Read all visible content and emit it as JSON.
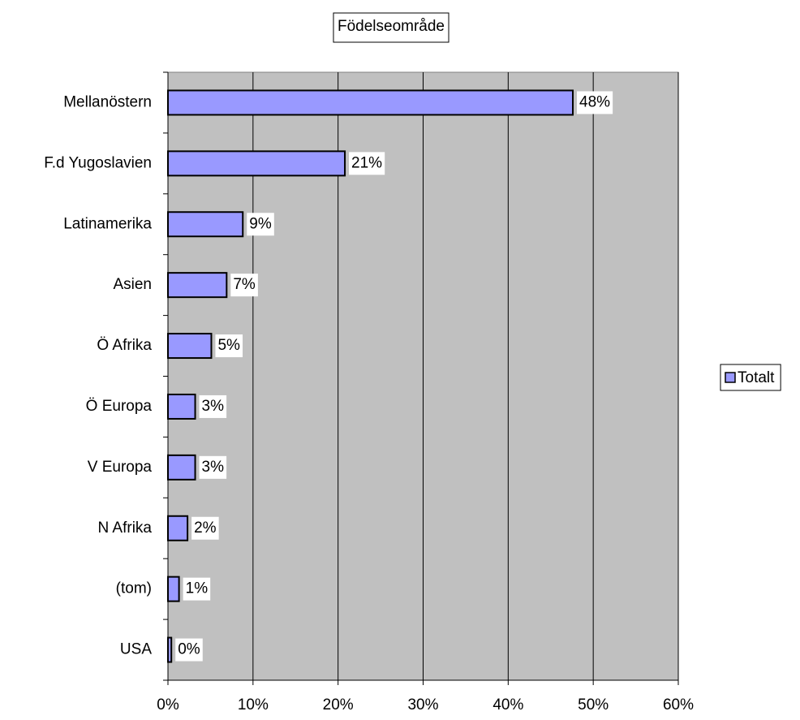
{
  "chart_data": {
    "type": "bar",
    "orientation": "horizontal",
    "title": "Födelseområde",
    "categories": [
      "Mellanöstern",
      "F.d Yugoslavien",
      "Latinamerika",
      "Asien",
      "Ö Afrika",
      "Ö Europa",
      "V Europa",
      "N Afrika",
      "(tom)",
      "USA"
    ],
    "series": [
      {
        "name": "Totalt",
        "color": "#9999ff",
        "values": [
          47.6,
          20.8,
          8.8,
          6.9,
          5.1,
          3.2,
          3.2,
          2.3,
          1.3,
          0.4
        ],
        "value_labels": [
          "48%",
          "21%",
          "9%",
          "7%",
          "5%",
          "3%",
          "3%",
          "2%",
          "1%",
          "0%"
        ]
      }
    ],
    "xlim": [
      0,
      60
    ],
    "xticks": [
      {
        "value": 0,
        "label": "0%"
      },
      {
        "value": 10,
        "label": "10%"
      },
      {
        "value": 20,
        "label": "20%"
      },
      {
        "value": 30,
        "label": "30%"
      },
      {
        "value": 40,
        "label": "40%"
      },
      {
        "value": 50,
        "label": "50%"
      },
      {
        "value": 60,
        "label": "60%"
      }
    ],
    "grid": true,
    "legend": "right",
    "plot_background": "#c0c0c0"
  }
}
